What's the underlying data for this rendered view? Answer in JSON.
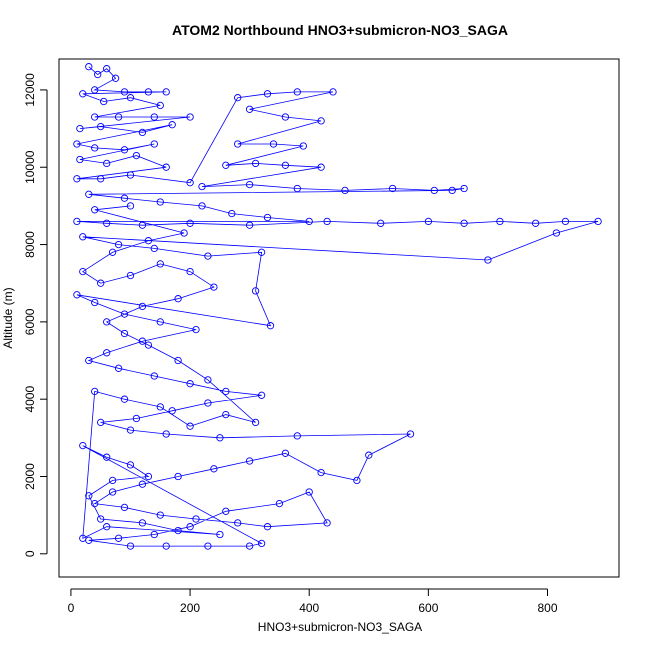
{
  "chart_data": {
    "type": "scatter",
    "title": "ATOM2 Northbound HNO3+submicron-NO3_SAGA",
    "xlabel": "HNO3+submicron-NO3_SAGA",
    "ylabel": "Altitude (m)",
    "xlim": [
      -20,
      920
    ],
    "ylim": [
      -600,
      12800
    ],
    "xticks": [
      0,
      200,
      400,
      600,
      800
    ],
    "yticks": [
      0,
      2000,
      4000,
      6000,
      8000,
      10000,
      12000
    ],
    "grid": false,
    "legend": "none",
    "colors": {
      "series": "#0000ff",
      "axis": "#000000"
    },
    "series": [
      {
        "markers": "open-circle",
        "connected": true,
        "points": [
          [
            30,
            12600
          ],
          [
            45,
            12400
          ],
          [
            60,
            12550
          ],
          [
            75,
            12300
          ],
          [
            40,
            12000
          ],
          [
            90,
            11950
          ],
          [
            130,
            11950
          ],
          [
            160,
            11950
          ],
          [
            20,
            11900
          ],
          [
            55,
            11700
          ],
          [
            100,
            11800
          ],
          [
            150,
            11600
          ],
          [
            40,
            11300
          ],
          [
            80,
            11300
          ],
          [
            140,
            11300
          ],
          [
            200,
            11300
          ],
          [
            15,
            11000
          ],
          [
            50,
            11050
          ],
          [
            120,
            10900
          ],
          [
            170,
            11100
          ],
          [
            10,
            10600
          ],
          [
            40,
            10500
          ],
          [
            90,
            10450
          ],
          [
            140,
            10600
          ],
          [
            15,
            10200
          ],
          [
            60,
            10100
          ],
          [
            110,
            10300
          ],
          [
            160,
            10000
          ],
          [
            10,
            9700
          ],
          [
            50,
            9700
          ],
          [
            100,
            9800
          ],
          [
            200,
            9600
          ],
          [
            280,
            11800
          ],
          [
            330,
            11900
          ],
          [
            380,
            11950
          ],
          [
            440,
            11950
          ],
          [
            300,
            11500
          ],
          [
            360,
            11300
          ],
          [
            420,
            11200
          ],
          [
            280,
            10600
          ],
          [
            340,
            10600
          ],
          [
            390,
            10550
          ],
          [
            260,
            10050
          ],
          [
            310,
            10100
          ],
          [
            360,
            10050
          ],
          [
            420,
            10000
          ],
          [
            220,
            9500
          ],
          [
            300,
            9550
          ],
          [
            380,
            9450
          ],
          [
            460,
            9400
          ],
          [
            540,
            9450
          ],
          [
            610,
            9400
          ],
          [
            660,
            9450
          ],
          [
            640,
            9400
          ],
          [
            30,
            9300
          ],
          [
            90,
            9200
          ],
          [
            150,
            9100
          ],
          [
            220,
            9000
          ],
          [
            270,
            8800
          ],
          [
            330,
            8700
          ],
          [
            400,
            8600
          ],
          [
            10,
            8600
          ],
          [
            60,
            8550
          ],
          [
            120,
            8500
          ],
          [
            200,
            8550
          ],
          [
            300,
            8500
          ],
          [
            430,
            8600
          ],
          [
            520,
            8550
          ],
          [
            600,
            8600
          ],
          [
            660,
            8550
          ],
          [
            720,
            8600
          ],
          [
            780,
            8550
          ],
          [
            830,
            8600
          ],
          [
            885,
            8600
          ],
          [
            815,
            8300
          ],
          [
            700,
            7600
          ],
          [
            20,
            8200
          ],
          [
            80,
            8000
          ],
          [
            140,
            7900
          ],
          [
            230,
            7700
          ],
          [
            320,
            7800
          ],
          [
            310,
            6800
          ],
          [
            335,
            5900
          ],
          [
            10,
            6700
          ],
          [
            40,
            6500
          ],
          [
            90,
            6200
          ],
          [
            150,
            6000
          ],
          [
            210,
            5800
          ],
          [
            120,
            5500
          ],
          [
            60,
            5200
          ],
          [
            30,
            5000
          ],
          [
            80,
            4800
          ],
          [
            140,
            4600
          ],
          [
            200,
            4400
          ],
          [
            260,
            4200
          ],
          [
            320,
            4100
          ],
          [
            230,
            3900
          ],
          [
            170,
            3700
          ],
          [
            110,
            3500
          ],
          [
            50,
            3400
          ],
          [
            100,
            3200
          ],
          [
            160,
            3100
          ],
          [
            250,
            3000
          ],
          [
            380,
            3050
          ],
          [
            570,
            3100
          ],
          [
            500,
            2550
          ],
          [
            480,
            1900
          ],
          [
            420,
            2100
          ],
          [
            360,
            2600
          ],
          [
            300,
            2400
          ],
          [
            240,
            2200
          ],
          [
            180,
            2000
          ],
          [
            120,
            1800
          ],
          [
            70,
            1600
          ],
          [
            40,
            1300
          ],
          [
            90,
            1200
          ],
          [
            150,
            1000
          ],
          [
            210,
            900
          ],
          [
            280,
            800
          ],
          [
            330,
            700
          ],
          [
            430,
            800
          ],
          [
            400,
            1600
          ],
          [
            350,
            1300
          ],
          [
            260,
            1100
          ],
          [
            200,
            700
          ],
          [
            140,
            500
          ],
          [
            80,
            400
          ],
          [
            30,
            350
          ],
          [
            100,
            200
          ],
          [
            160,
            200
          ],
          [
            230,
            200
          ],
          [
            300,
            200
          ],
          [
            320,
            270
          ],
          [
            20,
            2800
          ],
          [
            60,
            2500
          ],
          [
            100,
            2300
          ],
          [
            130,
            2000
          ],
          [
            70,
            1900
          ],
          [
            30,
            1500
          ],
          [
            50,
            900
          ],
          [
            120,
            800
          ],
          [
            180,
            600
          ],
          [
            250,
            500
          ],
          [
            60,
            700
          ],
          [
            20,
            400
          ],
          [
            40,
            4200
          ],
          [
            90,
            4000
          ],
          [
            150,
            3800
          ],
          [
            200,
            3300
          ],
          [
            260,
            3600
          ],
          [
            310,
            3400
          ],
          [
            230,
            4500
          ],
          [
            180,
            5000
          ],
          [
            130,
            5400
          ],
          [
            90,
            5700
          ],
          [
            60,
            6000
          ],
          [
            120,
            6400
          ],
          [
            180,
            6600
          ],
          [
            240,
            6900
          ],
          [
            200,
            7300
          ],
          [
            150,
            7500
          ],
          [
            100,
            7200
          ],
          [
            50,
            7000
          ],
          [
            20,
            7300
          ],
          [
            70,
            7800
          ],
          [
            130,
            8100
          ],
          [
            190,
            8300
          ],
          [
            40,
            8900
          ],
          [
            100,
            9000
          ]
        ]
      }
    ]
  }
}
